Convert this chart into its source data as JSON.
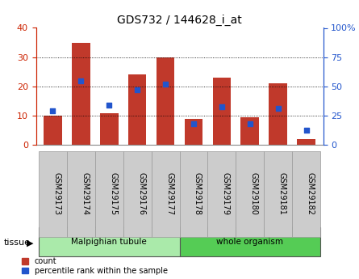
{
  "title": "GDS732 / 144628_i_at",
  "samples": [
    "GSM29173",
    "GSM29174",
    "GSM29175",
    "GSM29176",
    "GSM29177",
    "GSM29178",
    "GSM29179",
    "GSM29180",
    "GSM29181",
    "GSM29182"
  ],
  "counts": [
    10,
    35,
    11,
    24,
    30,
    9,
    23,
    9.5,
    21,
    2
  ],
  "percentiles": [
    29,
    55,
    34,
    47,
    52,
    18,
    33,
    18,
    31,
    13
  ],
  "ylim_left": [
    0,
    40
  ],
  "ylim_right": [
    0,
    100
  ],
  "yticks_left": [
    0,
    10,
    20,
    30,
    40
  ],
  "yticks_right": [
    0,
    25,
    50,
    75,
    100
  ],
  "ytick_labels_right": [
    "0",
    "25",
    "50",
    "75",
    "100%"
  ],
  "bar_color": "#c0392b",
  "dot_color": "#2255cc",
  "tissue_groups": [
    {
      "label": "Malpighian tubule",
      "start": 0,
      "end": 5
    },
    {
      "label": "whole organism",
      "start": 5,
      "end": 10
    }
  ],
  "tissue_color_light": "#aaeaaa",
  "tissue_color_dark": "#55cc55",
  "tissue_border_color": "#555555",
  "legend_count_label": "count",
  "legend_pct_label": "percentile rank within the sample",
  "tissue_label": "tissue",
  "tick_bg_color": "#cccccc",
  "left_axis_color": "#cc2200",
  "right_axis_color": "#2255cc",
  "grid_color": "#000000"
}
